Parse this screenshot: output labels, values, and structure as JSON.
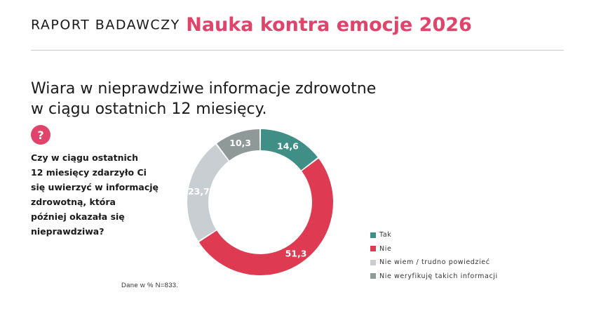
{
  "header": {
    "lead": "RAPORT BADAWCZY",
    "brand": "Nauka kontra emocje 2026"
  },
  "title_lines": [
    "Wiara w nieprawdziwe informacje zdrowotne",
    "w ciągu ostatnich 12 miesięcy."
  ],
  "question_icon": {
    "name": "question-icon",
    "glyph": "?"
  },
  "question_lines": [
    "Czy w ciągu ostatnich",
    "12 miesięcy zdarzyło Ci",
    "się uwierzyć w informację",
    "zdrowotną, która",
    "później okazała się",
    "nieprawdziwa?"
  ],
  "source": "Dane w % N=833.",
  "colors": {
    "brand": "#e0446a"
  },
  "chart_data": {
    "type": "pie",
    "variant": "donut",
    "categories": [
      "Tak",
      "Nie",
      "Nie wiem / trudno powiedzieć",
      "Nie weryfikuję takich informacji"
    ],
    "values": [
      14.6,
      51.3,
      23.7,
      10.3
    ],
    "value_labels": [
      "14,6",
      "51,3",
      "23,7",
      "10,3"
    ],
    "colors": [
      "#3f8f86",
      "#de3a52",
      "#c9ced3",
      "#8f9998"
    ],
    "label_colors": [
      "#ffffff",
      "#ffffff",
      "#ffffff",
      "#ffffff"
    ],
    "start": "12 o'clock",
    "direction": "clockwise",
    "legend_position": "right-bottom"
  }
}
